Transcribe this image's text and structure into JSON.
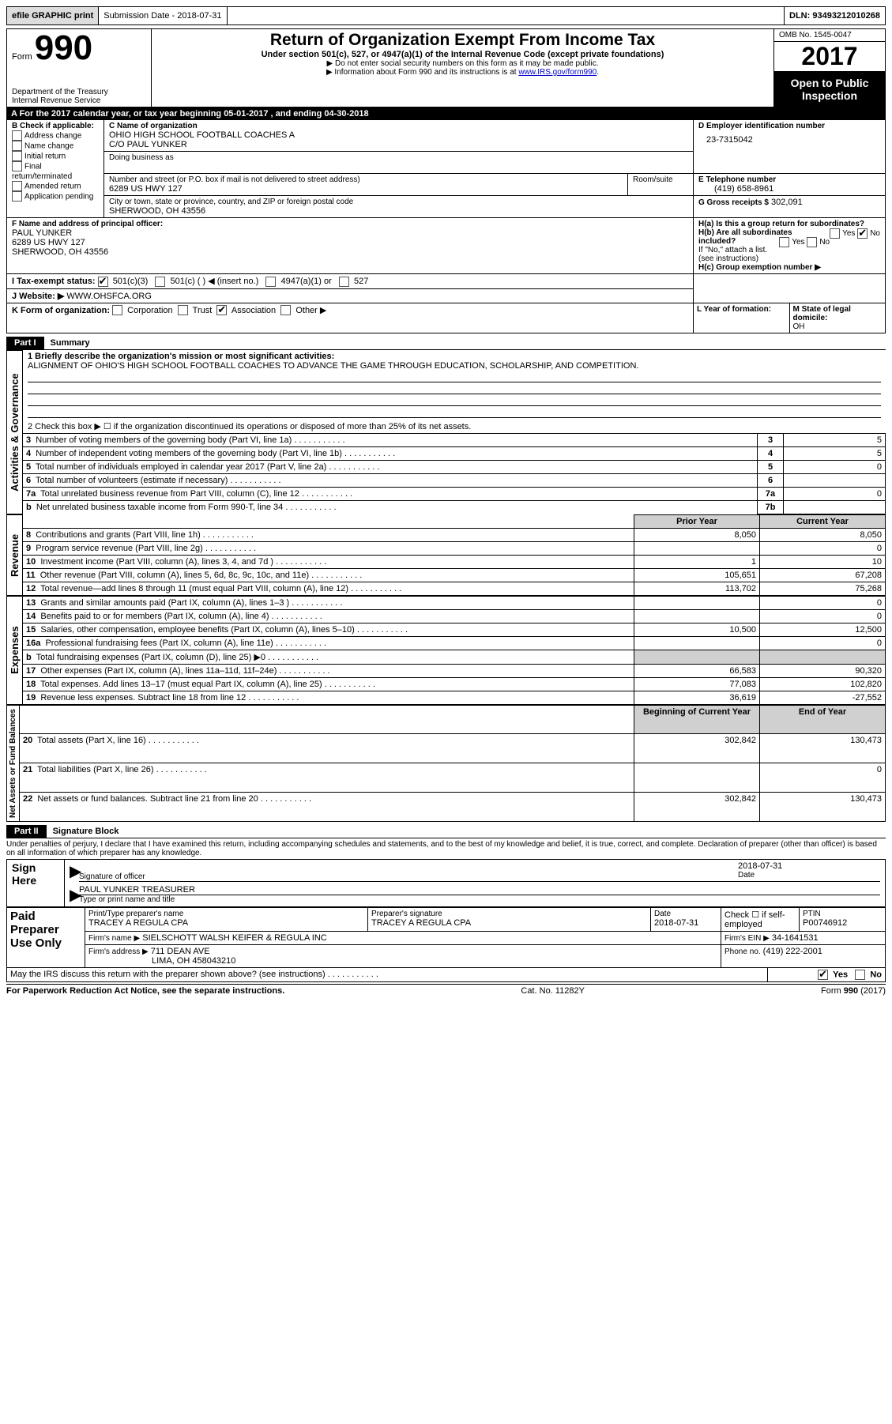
{
  "topbar": {
    "efile": "efile GRAPHIC print",
    "submission": "Submission Date - 2018-07-31",
    "dln": "DLN: 93493212010268"
  },
  "header": {
    "form_label": "Form",
    "form_num": "990",
    "dept": "Department of the Treasury",
    "irs": "Internal Revenue Service",
    "title": "Return of Organization Exempt From Income Tax",
    "subtitle": "Under section 501(c), 527, or 4947(a)(1) of the Internal Revenue Code (except private foundations)",
    "note1": "▶ Do not enter social security numbers on this form as it may be made public.",
    "note2_pre": "▶ Information about Form 990 and its instructions is at ",
    "note2_link": "www.IRS.gov/form990",
    "omb": "OMB No. 1545-0047",
    "year": "2017",
    "open": "Open to Public Inspection"
  },
  "row_a": "A  For the 2017 calendar year, or tax year beginning 05-01-2017   , and ending 04-30-2018",
  "box_b": {
    "label": "B Check if applicable:",
    "items": [
      "Address change",
      "Name change",
      "Initial return",
      "Final return/terminated",
      "Amended return",
      "Application pending"
    ]
  },
  "box_c": {
    "name_label": "C Name of organization",
    "name": "OHIO HIGH SCHOOL FOOTBALL COACHES A",
    "co": "C/O PAUL YUNKER",
    "dba_label": "Doing business as",
    "street_label": "Number and street (or P.O. box if mail is not delivered to street address)",
    "room_label": "Room/suite",
    "street": "6289 US HWY 127",
    "city_label": "City or town, state or province, country, and ZIP or foreign postal code",
    "city": "SHERWOOD, OH  43556"
  },
  "box_d": {
    "label": "D Employer identification number",
    "val": "23-7315042"
  },
  "box_e": {
    "label": "E Telephone number",
    "val": "(419) 658-8961"
  },
  "box_g": {
    "label": "G Gross receipts $",
    "val": "302,091"
  },
  "box_f": {
    "label": "F Name and address of principal officer:",
    "name": "PAUL YUNKER",
    "street": "6289 US HWY 127",
    "city": "SHERWOOD, OH  43556"
  },
  "box_h": {
    "a_label": "H(a)  Is this a group return for subordinates?",
    "b_label": "H(b)  Are all subordinates included?",
    "b_note": "If \"No,\" attach a list. (see instructions)",
    "c_label": "H(c)  Group exemption number ▶"
  },
  "row_i": {
    "label": "I   Tax-exempt status:",
    "opt1": "501(c)(3)",
    "opt2": "501(c) (  ) ◀ (insert no.)",
    "opt3": "4947(a)(1) or",
    "opt4": "527"
  },
  "row_j": {
    "label": "J   Website: ▶",
    "val": "WWW.OHSFCA.ORG"
  },
  "row_k": {
    "label": "K Form of organization:",
    "opts": [
      "Corporation",
      "Trust",
      "Association",
      "Other ▶"
    ]
  },
  "row_l": {
    "label": "L Year of formation:"
  },
  "row_m": {
    "label": "M State of legal domicile:",
    "val": "OH"
  },
  "part1": {
    "label": "Part I",
    "title": "Summary"
  },
  "summary": {
    "q1_label": "1  Briefly describe the organization's mission or most significant activities:",
    "q1_text": "ALIGNMENT OF OHIO'S HIGH SCHOOL FOOTBALL COACHES TO ADVANCE THE GAME THROUGH EDUCATION, SCHOLARSHIP, AND COMPETITION.",
    "q2": "2   Check this box ▶ ☐  if the organization discontinued its operations or disposed of more than 25% of its net assets.",
    "rows_top": [
      {
        "n": "3",
        "t": "Number of voting members of the governing body (Part VI, line 1a)",
        "c": "3",
        "v": "5"
      },
      {
        "n": "4",
        "t": "Number of independent voting members of the governing body (Part VI, line 1b)",
        "c": "4",
        "v": "5"
      },
      {
        "n": "5",
        "t": "Total number of individuals employed in calendar year 2017 (Part V, line 2a)",
        "c": "5",
        "v": "0"
      },
      {
        "n": "6",
        "t": "Total number of volunteers (estimate if necessary)",
        "c": "6",
        "v": ""
      },
      {
        "n": "7a",
        "t": "Total unrelated business revenue from Part VIII, column (C), line 12",
        "c": "7a",
        "v": "0"
      },
      {
        "n": "b",
        "t": "Net unrelated business taxable income from Form 990-T, line 34",
        "c": "7b",
        "v": ""
      }
    ],
    "col_head_prior": "Prior Year",
    "col_head_curr": "Current Year",
    "rev": [
      {
        "n": "8",
        "t": "Contributions and grants (Part VIII, line 1h)",
        "p": "8,050",
        "c": "8,050"
      },
      {
        "n": "9",
        "t": "Program service revenue (Part VIII, line 2g)",
        "p": "",
        "c": "0"
      },
      {
        "n": "10",
        "t": "Investment income (Part VIII, column (A), lines 3, 4, and 7d )",
        "p": "1",
        "c": "10"
      },
      {
        "n": "11",
        "t": "Other revenue (Part VIII, column (A), lines 5, 6d, 8c, 9c, 10c, and 11e)",
        "p": "105,651",
        "c": "67,208"
      },
      {
        "n": "12",
        "t": "Total revenue—add lines 8 through 11 (must equal Part VIII, column (A), line 12)",
        "p": "113,702",
        "c": "75,268"
      }
    ],
    "exp": [
      {
        "n": "13",
        "t": "Grants and similar amounts paid (Part IX, column (A), lines 1–3 )",
        "p": "",
        "c": "0"
      },
      {
        "n": "14",
        "t": "Benefits paid to or for members (Part IX, column (A), line 4)",
        "p": "",
        "c": "0"
      },
      {
        "n": "15",
        "t": "Salaries, other compensation, employee benefits (Part IX, column (A), lines 5–10)",
        "p": "10,500",
        "c": "12,500"
      },
      {
        "n": "16a",
        "t": "Professional fundraising fees (Part IX, column (A), line 11e)",
        "p": "",
        "c": "0"
      },
      {
        "n": "b",
        "t": "Total fundraising expenses (Part IX, column (D), line 25) ▶0",
        "p": "shade",
        "c": "shade"
      },
      {
        "n": "17",
        "t": "Other expenses (Part IX, column (A), lines 11a–11d, 11f–24e)",
        "p": "66,583",
        "c": "90,320"
      },
      {
        "n": "18",
        "t": "Total expenses. Add lines 13–17 (must equal Part IX, column (A), line 25)",
        "p": "77,083",
        "c": "102,820"
      },
      {
        "n": "19",
        "t": "Revenue less expenses. Subtract line 18 from line 12",
        "p": "36,619",
        "c": "-27,552"
      }
    ],
    "net_head_b": "Beginning of Current Year",
    "net_head_e": "End of Year",
    "net": [
      {
        "n": "20",
        "t": "Total assets (Part X, line 16)",
        "p": "302,842",
        "c": "130,473"
      },
      {
        "n": "21",
        "t": "Total liabilities (Part X, line 26)",
        "p": "",
        "c": "0"
      },
      {
        "n": "22",
        "t": "Net assets or fund balances. Subtract line 21 from line 20",
        "p": "302,842",
        "c": "130,473"
      }
    ]
  },
  "side_labels": {
    "gov": "Activities & Governance",
    "rev": "Revenue",
    "exp": "Expenses",
    "net": "Net Assets or Fund Balances"
  },
  "part2": {
    "label": "Part II",
    "title": "Signature Block"
  },
  "sig": {
    "perjury": "Under penalties of perjury, I declare that I have examined this return, including accompanying schedules and statements, and to the best of my knowledge and belief, it is true, correct, and complete. Declaration of preparer (other than officer) is based on all information of which preparer has any knowledge.",
    "sign_here": "Sign Here",
    "sig_off": "Signature of officer",
    "date": "Date",
    "date_val": "2018-07-31",
    "name_title": "PAUL YUNKER TREASURER",
    "name_title_label": "Type or print name and title",
    "paid": "Paid Preparer Use Only",
    "prep_name_label": "Print/Type preparer's name",
    "prep_name": "TRACEY A REGULA CPA",
    "prep_sig_label": "Preparer's signature",
    "prep_sig": "TRACEY A REGULA CPA",
    "prep_date_label": "Date",
    "prep_date": "2018-07-31",
    "self_emp": "Check ☐ if self-employed",
    "ptin_label": "PTIN",
    "ptin": "P00746912",
    "firm_name_label": "Firm's name     ▶",
    "firm_name": "SIELSCHOTT WALSH KEIFER & REGULA INC",
    "firm_ein_label": "Firm's EIN ▶",
    "firm_ein": "34-1641531",
    "firm_addr_label": "Firm's address ▶",
    "firm_addr1": "711 DEAN AVE",
    "firm_addr2": "LIMA, OH  458043210",
    "phone_label": "Phone no.",
    "phone": "(419) 222-2001",
    "discuss": "May the IRS discuss this return with the preparer shown above? (see instructions)",
    "yes": "Yes",
    "no": "No"
  },
  "footer": {
    "pra": "For Paperwork Reduction Act Notice, see the separate instructions.",
    "cat": "Cat. No. 11282Y",
    "form": "Form 990 (2017)"
  }
}
